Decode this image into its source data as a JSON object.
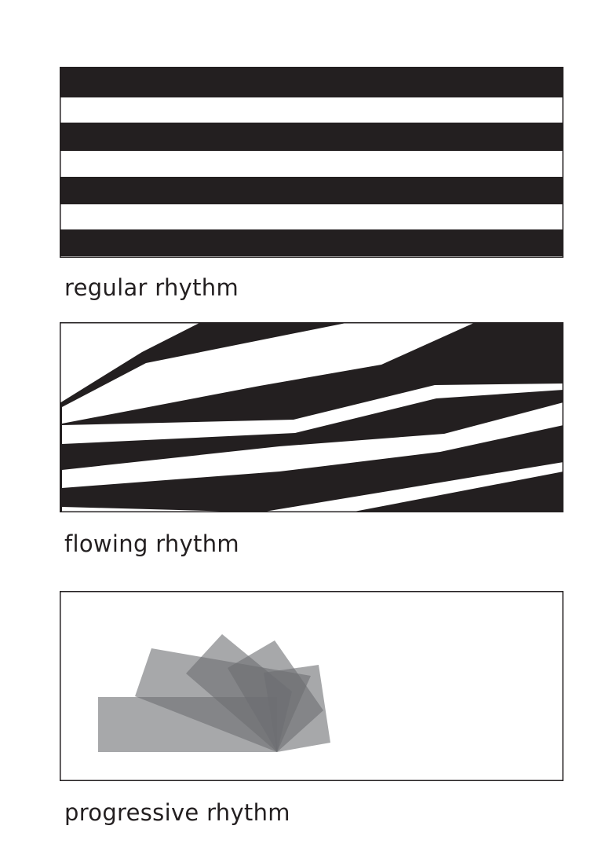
{
  "colors": {
    "ink": "#231f20",
    "paper": "#ffffff",
    "overlay_gray": "#6d6e71"
  },
  "panels": [
    {
      "id": "regular",
      "caption": "regular rhythm"
    },
    {
      "id": "flowing",
      "caption": "flowing rhythm"
    },
    {
      "id": "progressive",
      "caption": "progressive rhythm"
    }
  ]
}
